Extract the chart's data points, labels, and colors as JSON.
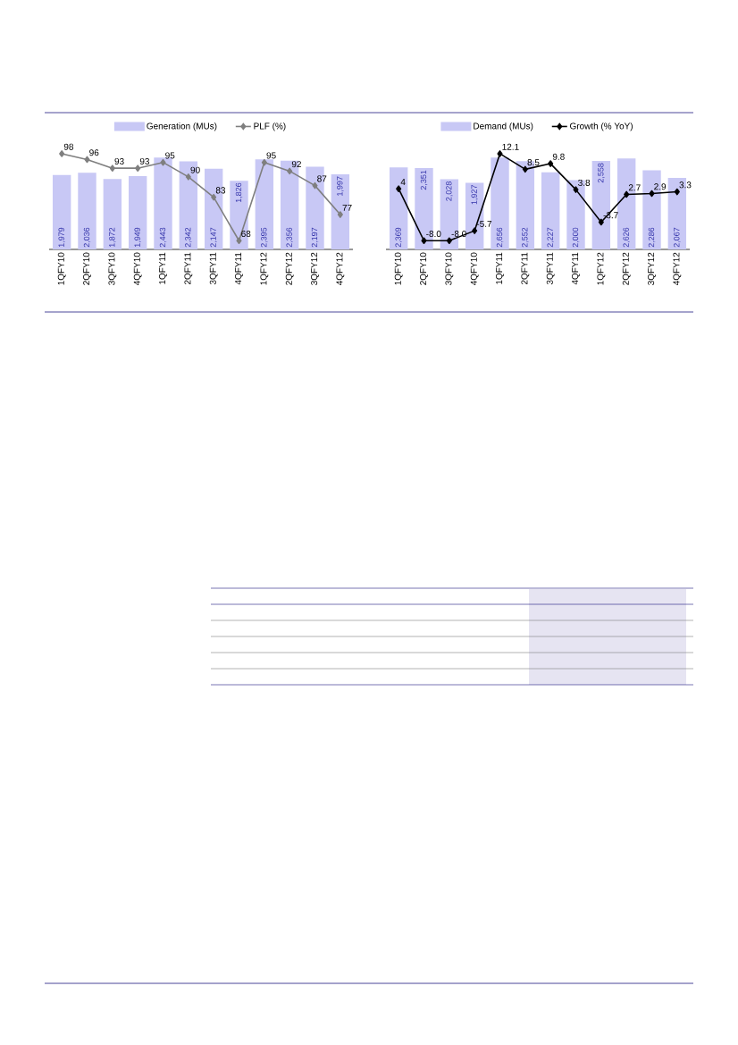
{
  "chart_data": [
    {
      "type": "bar",
      "categories": [
        "1QFY10",
        "2QFY10",
        "3QFY10",
        "4QFY10",
        "1QFY11",
        "2QFY11",
        "3QFY11",
        "4QFY11",
        "1QFY12",
        "2QFY12",
        "3QFY12",
        "4QFY12"
      ],
      "series": [
        {
          "name": "Generation  (MUs)",
          "color": "#c8c8f5",
          "values": [
            1979,
            2036,
            1872,
            1949,
            2443,
            2342,
            2147,
            1826,
            2395,
            2356,
            2197,
            1997
          ],
          "value_labels": [
            "1,979",
            "2,036",
            "1,872",
            "1,949",
            "2,443",
            "2,342",
            "2,147",
            "1,826",
            "2,395",
            "2,356",
            "2,197",
            "1,997"
          ]
        },
        {
          "name": "PLF (%)",
          "type": "line",
          "axis": "y2",
          "color": "#7f7f7f",
          "values": [
            98,
            96,
            93,
            93,
            95,
            90,
            83,
            68,
            95,
            92,
            87,
            77
          ]
        }
      ],
      "data_labels": true,
      "legend": "top",
      "marker": "diamond"
    },
    {
      "type": "bar",
      "categories": [
        "1QFY10",
        "2QFY10",
        "3QFY10",
        "4QFY10",
        "1QFY11",
        "2QFY11",
        "3QFY11",
        "4QFY11",
        "1QFY12",
        "2QFY12",
        "3QFY12",
        "4QFY12"
      ],
      "series": [
        {
          "name": "Demand (MUs)",
          "color": "#c8c8f5",
          "values": [
            2369,
            2351,
            2028,
            1927,
            2656,
            2552,
            2227,
            2000,
            2558,
            2626,
            2286,
            2067
          ],
          "value_labels": [
            "2,369",
            "2,351",
            "2,028",
            "1,927",
            "2,656",
            "2,552",
            "2,227",
            "2,000",
            "2,558",
            "2,626",
            "2,286",
            "2,067"
          ]
        },
        {
          "name": "Growth (% YoY)",
          "type": "line",
          "axis": "y2",
          "color": "#000000",
          "values": [
            4,
            -8.0,
            -8.0,
            -5.7,
            12.1,
            8.5,
            9.8,
            3.8,
            -3.7,
            2.7,
            2.9,
            3.3
          ],
          "value_labels": [
            "4",
            "-8.0",
            "-8.0",
            "-5.7",
            "12.1",
            "8.5",
            "9.8",
            "3.8",
            "-3.7",
            "2.7",
            "2.9",
            "3.3"
          ]
        }
      ],
      "data_labels": true,
      "legend": "top",
      "marker": "diamond"
    }
  ]
}
